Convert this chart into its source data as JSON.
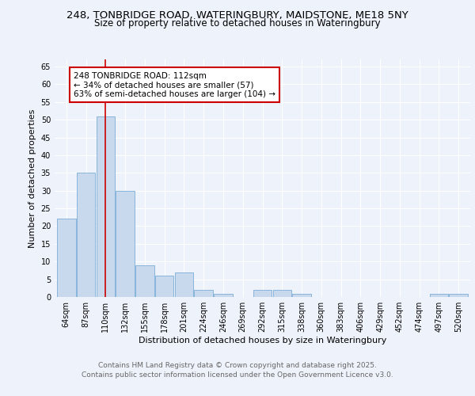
{
  "title": "248, TONBRIDGE ROAD, WATERINGBURY, MAIDSTONE, ME18 5NY",
  "subtitle": "Size of property relative to detached houses in Wateringbury",
  "xlabel": "Distribution of detached houses by size in Wateringbury",
  "ylabel": "Number of detached properties",
  "categories": [
    "64sqm",
    "87sqm",
    "110sqm",
    "132sqm",
    "155sqm",
    "178sqm",
    "201sqm",
    "224sqm",
    "246sqm",
    "269sqm",
    "292sqm",
    "315sqm",
    "338sqm",
    "360sqm",
    "383sqm",
    "406sqm",
    "429sqm",
    "452sqm",
    "474sqm",
    "497sqm",
    "520sqm"
  ],
  "values": [
    22,
    35,
    51,
    30,
    9,
    6,
    7,
    2,
    1,
    0,
    2,
    2,
    1,
    0,
    0,
    0,
    0,
    0,
    0,
    1,
    1
  ],
  "bar_color": "#c8d9ee",
  "bar_edge_color": "#7aaed6",
  "vline_x_index": 2,
  "vline_color": "#cc0000",
  "annotation_text": "248 TONBRIDGE ROAD: 112sqm\n← 34% of detached houses are smaller (57)\n63% of semi-detached houses are larger (104) →",
  "annotation_box_facecolor": "#ffffff",
  "annotation_box_edgecolor": "#cc0000",
  "ylim": [
    0,
    67
  ],
  "yticks": [
    0,
    5,
    10,
    15,
    20,
    25,
    30,
    35,
    40,
    45,
    50,
    55,
    60,
    65
  ],
  "footer_line1": "Contains HM Land Registry data © Crown copyright and database right 2025.",
  "footer_line2": "Contains public sector information licensed under the Open Government Licence v3.0.",
  "bg_color": "#eef2fa",
  "grid_color": "#ffffff",
  "title_fontsize": 9.5,
  "subtitle_fontsize": 8.5,
  "axis_label_fontsize": 8,
  "tick_fontsize": 7,
  "annotation_fontsize": 7.5,
  "footer_fontsize": 6.5
}
